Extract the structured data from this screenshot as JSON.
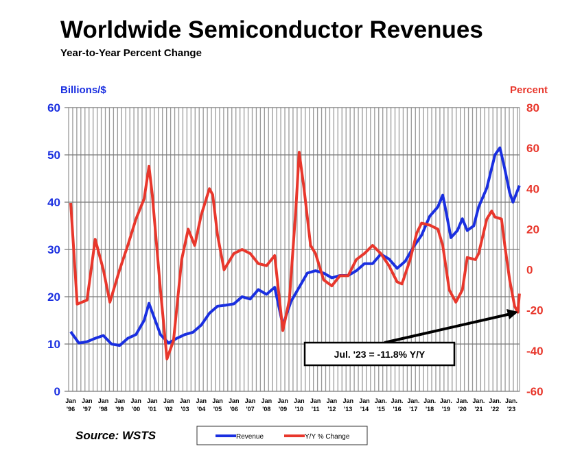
{
  "chart_data": {
    "type": "line",
    "title": "Worldwide Semiconductor Revenues",
    "subtitle": "Year-to-Year Percent Change",
    "left_axis": {
      "label": "Billions/$",
      "range": [
        0,
        60
      ],
      "ticks": [
        0,
        10,
        20,
        30,
        40,
        50,
        60
      ],
      "color": "#1a2fe0"
    },
    "right_axis": {
      "label": "Percent",
      "range": [
        -60,
        80
      ],
      "ticks": [
        -60,
        -40,
        -20,
        0,
        20,
        40,
        60,
        80
      ],
      "color": "#e8372c"
    },
    "x_ticks": [
      "Jan '96",
      "Jan '97",
      "Jan '98",
      "Jan '99",
      "Jan '00",
      "Jan '01",
      "Jan '02",
      "Jan '03",
      "Jan '04",
      "Jan '05",
      "Jan '06",
      "Jan '07",
      "Jan '08",
      "Jan '09",
      "Jan '10",
      "Jan '11",
      "Jan '12",
      "Jan '13",
      "Jan '14",
      "Jan. '15",
      "Jan. '16",
      "Jan. '17",
      "Jan. '18",
      "Jan. '19",
      "Jan. '20",
      "Jan. '21",
      "Jan. '22",
      "Jan. '23"
    ],
    "x_range": [
      1996,
      2023.6
    ],
    "grid": true,
    "series": [
      {
        "name": "Revenue",
        "axis": "left",
        "color": "#1a2fe0",
        "x": [
          1996.0,
          1996.5,
          1997.0,
          1997.5,
          1998.0,
          1998.5,
          1999.0,
          1999.5,
          2000.0,
          2000.5,
          2000.8,
          2001.5,
          2002.0,
          2002.5,
          2003.0,
          2003.5,
          2004.0,
          2004.5,
          2005.0,
          2005.5,
          2006.0,
          2006.5,
          2007.0,
          2007.5,
          2008.0,
          2008.5,
          2009.0,
          2009.5,
          2010.0,
          2010.5,
          2011.0,
          2011.5,
          2012.0,
          2012.5,
          2013.0,
          2013.5,
          2014.0,
          2014.5,
          2015.0,
          2015.5,
          2016.0,
          2016.5,
          2017.0,
          2017.5,
          2018.0,
          2018.5,
          2018.8,
          2019.0,
          2019.3,
          2019.7,
          2020.0,
          2020.3,
          2020.7,
          2021.0,
          2021.5,
          2022.0,
          2022.3,
          2022.6,
          2022.9,
          2023.1,
          2023.5
        ],
        "y": [
          12.6,
          10.2,
          10.5,
          11.2,
          11.8,
          10.0,
          9.7,
          11.2,
          12.0,
          15.0,
          18.6,
          12.0,
          10.2,
          11.2,
          12.0,
          12.5,
          14.0,
          16.5,
          18.0,
          18.2,
          18.5,
          20.0,
          19.5,
          21.5,
          20.5,
          22.0,
          14.0,
          19.0,
          22.0,
          25.0,
          25.5,
          25.0,
          24.0,
          24.5,
          24.5,
          25.5,
          27.0,
          27.0,
          29.0,
          28.0,
          26.0,
          27.5,
          30.5,
          33.0,
          37.0,
          39.0,
          41.5,
          38.0,
          32.5,
          34.0,
          36.5,
          34.0,
          35.0,
          39.0,
          43.0,
          50.0,
          51.5,
          47.0,
          42.0,
          40.0,
          43.5
        ]
      },
      {
        "name": "Y/Y % Change",
        "axis": "right",
        "color": "#e8372c",
        "x": [
          1996.0,
          1996.4,
          1997.0,
          1997.5,
          1998.0,
          1998.4,
          1999.0,
          1999.5,
          2000.0,
          2000.5,
          2000.8,
          2001.0,
          2001.5,
          2001.9,
          2002.3,
          2002.8,
          2003.2,
          2003.6,
          2004.0,
          2004.5,
          2004.7,
          2005.0,
          2005.4,
          2006.0,
          2006.5,
          2007.0,
          2007.5,
          2008.0,
          2008.5,
          2009.0,
          2009.4,
          2009.8,
          2010.0,
          2010.3,
          2010.7,
          2011.0,
          2011.5,
          2012.0,
          2012.5,
          2013.0,
          2013.5,
          2014.0,
          2014.5,
          2015.0,
          2015.5,
          2016.0,
          2016.3,
          2016.8,
          2017.2,
          2017.5,
          2018.0,
          2018.5,
          2018.8,
          2019.2,
          2019.6,
          2020.0,
          2020.3,
          2020.8,
          2021.0,
          2021.5,
          2021.8,
          2022.0,
          2022.4,
          2022.6,
          2022.9,
          2023.2,
          2023.4,
          2023.5
        ],
        "y": [
          33,
          -17,
          -15,
          15,
          0,
          -16,
          0,
          12,
          25,
          35,
          51,
          37,
          -10,
          -44,
          -35,
          5,
          20,
          12,
          27,
          40,
          37,
          17,
          0,
          8,
          10,
          8,
          3,
          2,
          7,
          -30,
          -15,
          30,
          58,
          40,
          12,
          8,
          -5,
          -8,
          -3,
          -3,
          5,
          8,
          12,
          8,
          2,
          -6,
          -7,
          5,
          18,
          23,
          22,
          20,
          12,
          -10,
          -16,
          -10,
          6,
          5,
          8,
          25,
          29,
          26,
          25,
          12,
          -5,
          -18,
          -21,
          -11.8
        ]
      }
    ],
    "annotation": "Jul. '23 = -11.8% Y/Y",
    "source": "Source: WSTS",
    "legend": {
      "placement": "bottom",
      "entries": [
        "Revenue",
        "Y/Y % Change"
      ]
    }
  }
}
